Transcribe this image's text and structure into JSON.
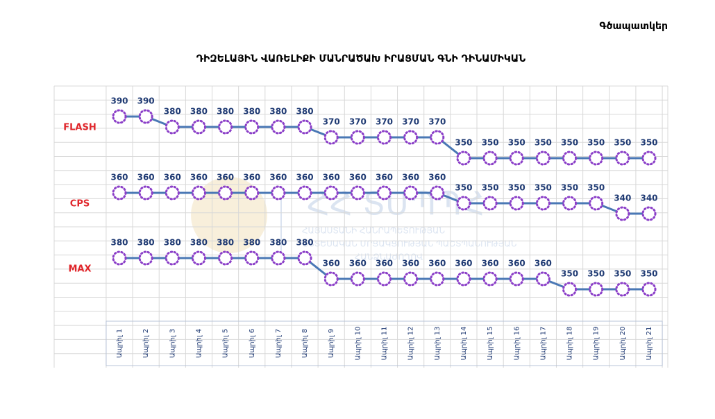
{
  "header": "Գծապատկեր",
  "watermark": {
    "logo": "ՀՀ ՏՄՊՊՀ",
    "lines": [
      "ՀԱՅԱՍՏԱՆԻ ՀԱՆՐԱՊԵՏՈՒԹՅԱՆ",
      "ՏՆՏԵՍԱԿԱՆ ՄՐՑԱԿՑՈՒԹՅԱՆ ՊԱՇՏՊԱՆՈՒԹՅԱՆ",
      "ՀԱՆՁՆԱԺՈՂՈՎ"
    ]
  },
  "chart_data": {
    "type": "line",
    "title": "ԴԻԶԵԼԱՅԻՆ ՎԱՌԵԼԻՔԻ ՄԱՆՐԱԾԱԽ ԻՐԱՑՄԱՆ ԳՆԻ ԴԻՆԱՄԻԿԱՆ",
    "categories": [
      "Ապրիլ 1",
      "Ապրիլ 2",
      "Ապրիլ 3",
      "Ապրիլ 4",
      "Ապրիլ 5",
      "Ապրիլ 6",
      "Ապրիլ 7",
      "Ապրիլ 8",
      "Ապրիլ 9",
      "Ապրիլ 10",
      "Ապրիլ 11",
      "Ապրիլ 12",
      "Ապրիլ 13",
      "Ապրիլ 14",
      "Ապրիլ 15",
      "Ապրիլ 16",
      "Ապրիլ 17",
      "Ապրիլ 18",
      "Ապրիլ 19",
      "Ապրիլ 20",
      "Ապրիլ 21"
    ],
    "series": [
      {
        "name": "FLASH",
        "color": "#4a78b5",
        "values": [
          390,
          390,
          380,
          380,
          380,
          380,
          380,
          380,
          370,
          370,
          370,
          370,
          370,
          350,
          350,
          350,
          350,
          350,
          350,
          350,
          350
        ]
      },
      {
        "name": "CPS",
        "color": "#4a78b5",
        "values": [
          360,
          360,
          360,
          360,
          360,
          360,
          360,
          360,
          360,
          360,
          360,
          360,
          360,
          350,
          350,
          350,
          350,
          350,
          350,
          340,
          340
        ]
      },
      {
        "name": "MAX",
        "color": "#4a78b5",
        "values": [
          380,
          380,
          380,
          380,
          380,
          380,
          380,
          380,
          360,
          360,
          360,
          360,
          360,
          360,
          360,
          360,
          360,
          350,
          350,
          350,
          350
        ]
      }
    ],
    "marker_color": "#8b3fc8",
    "label_color": "#1f3a73",
    "name_color": "#e0262b",
    "grid": true
  }
}
